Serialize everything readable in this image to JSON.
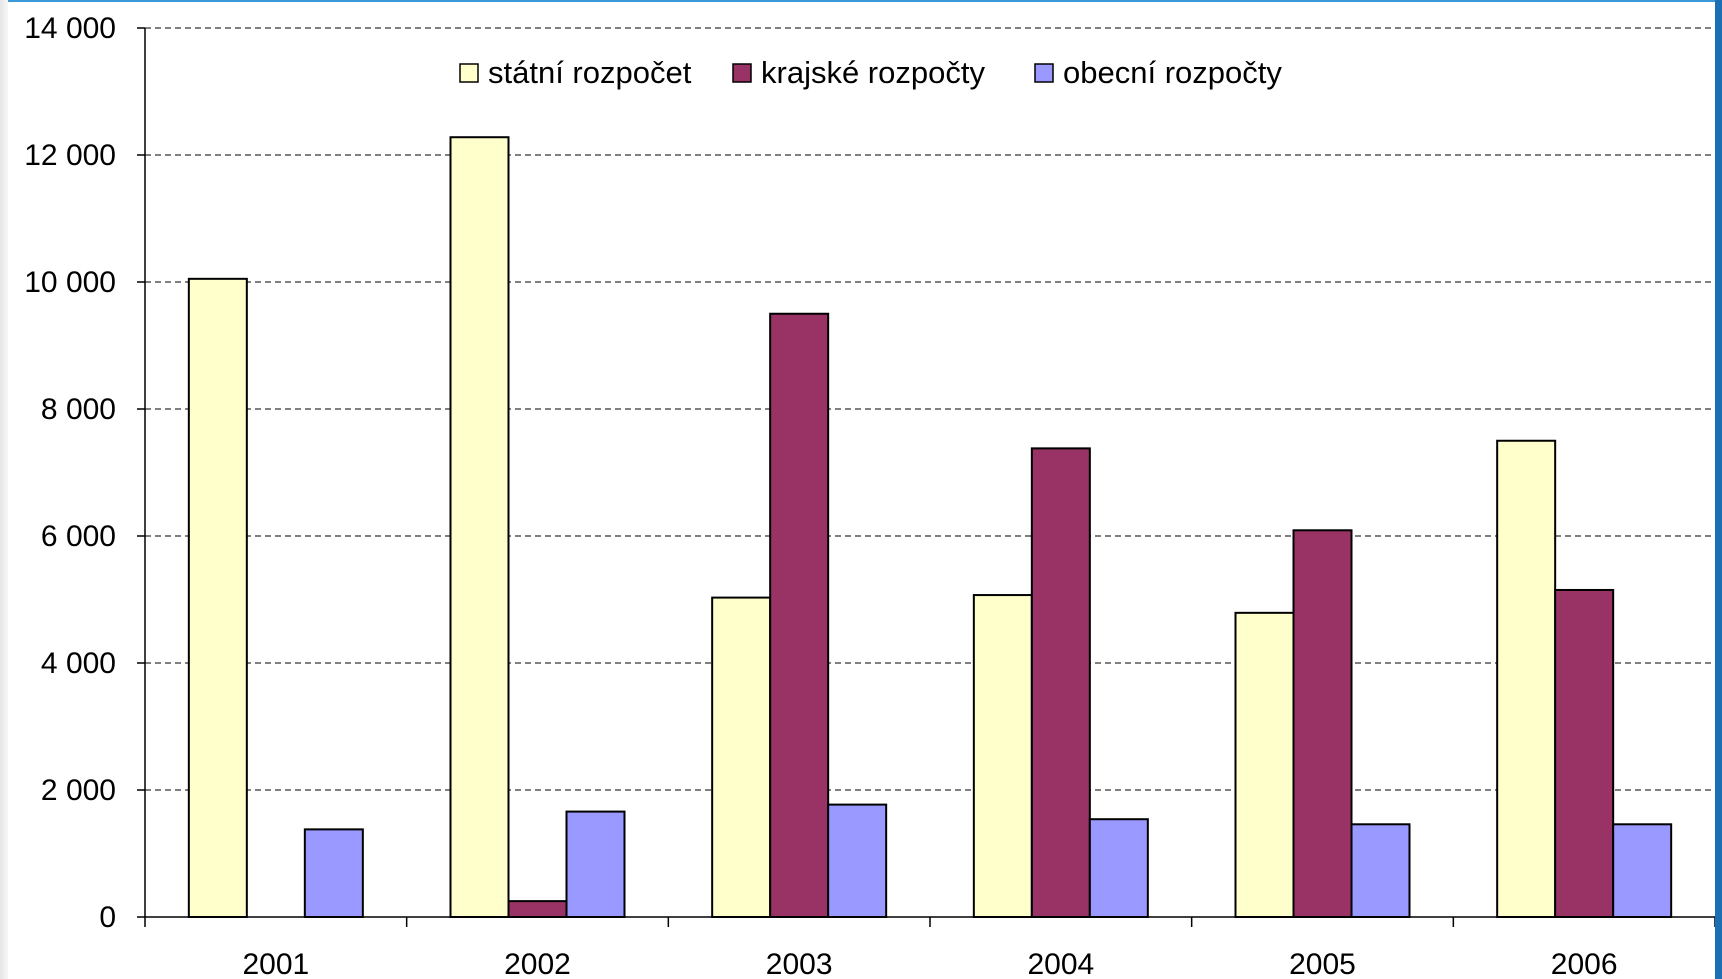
{
  "chart_data": {
    "type": "bar",
    "title": "",
    "xlabel": "",
    "ylabel": "",
    "categories": [
      "2001",
      "2002",
      "2003",
      "2004",
      "2005",
      "2006"
    ],
    "series": [
      {
        "name": "státní rozpočet",
        "color": "#ffffcc",
        "values": [
          10050,
          12280,
          5030,
          5070,
          4790,
          7500
        ]
      },
      {
        "name": "krajské rozpočty",
        "color": "#993366",
        "values": [
          0,
          250,
          9500,
          7380,
          6090,
          5150
        ]
      },
      {
        "name": "obecní rozpočty",
        "color": "#9999ff",
        "values": [
          1380,
          1660,
          1770,
          1540,
          1460,
          1460
        ]
      }
    ],
    "ylim": [
      0,
      14000
    ],
    "yticks": [
      0,
      2000,
      4000,
      6000,
      8000,
      10000,
      12000,
      14000
    ],
    "ytick_labels": [
      "0",
      "2 000",
      "4 000",
      "6 000",
      "8 000",
      "10 000",
      "12 000",
      "14 000"
    ],
    "grid": "horizontal dashed",
    "legend_position": "top"
  }
}
